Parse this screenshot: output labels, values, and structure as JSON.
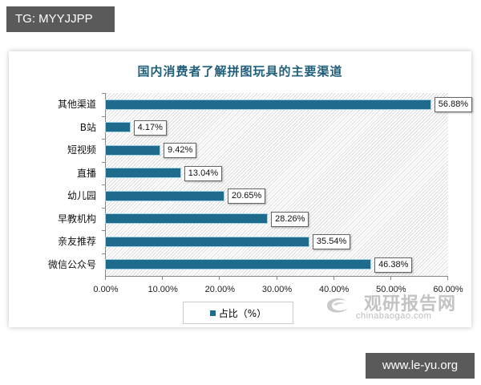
{
  "overlays": {
    "top_tag": "TG: MYYJJPP",
    "bottom_tag": "www.le-yu.org"
  },
  "watermark": {
    "name_cn": "观研报告网",
    "domain": "chinabaogao.com"
  },
  "legend": {
    "label": "占比（%）"
  },
  "x_ticks": [
    "0.00%",
    "10.00%",
    "20.00%",
    "30.00%",
    "40.00%",
    "50.00%",
    "60.00%"
  ],
  "bars": [
    {
      "category": "其他渠道",
      "value": 56.88,
      "label": "56.88%"
    },
    {
      "category": "B站",
      "value": 4.17,
      "label": "4.17%"
    },
    {
      "category": "短视频",
      "value": 9.42,
      "label": "9.42%"
    },
    {
      "category": "直播",
      "value": 13.04,
      "label": "13.04%"
    },
    {
      "category": "幼儿园",
      "value": 20.65,
      "label": "20.65%"
    },
    {
      "category": "早教机构",
      "value": 28.26,
      "label": "28.26%"
    },
    {
      "category": "亲友推荐",
      "value": 35.54,
      "label": "35.54%"
    },
    {
      "category": "微信公众号",
      "value": 46.38,
      "label": "46.38%"
    }
  ],
  "colors": {
    "bar": "#1f6b8e",
    "title": "#1f5e7a"
  },
  "chart_data": {
    "type": "bar",
    "orientation": "horizontal",
    "title": "国内消费者了解拼图玩具的主要渠道",
    "categories": [
      "其他渠道",
      "B站",
      "短视频",
      "直播",
      "幼儿园",
      "早教机构",
      "亲友推荐",
      "微信公众号"
    ],
    "series": [
      {
        "name": "占比（%）",
        "values": [
          56.88,
          4.17,
          9.42,
          13.04,
          20.65,
          28.26,
          35.54,
          46.38
        ]
      }
    ],
    "xlabel": "",
    "ylabel": "",
    "xlim": [
      0,
      60
    ],
    "x_tick_labels": [
      "0.00%",
      "10.00%",
      "20.00%",
      "30.00%",
      "40.00%",
      "50.00%",
      "60.00%"
    ],
    "data_labels": [
      "56.88%",
      "4.17%",
      "9.42%",
      "13.04%",
      "20.65%",
      "28.26%",
      "35.54%",
      "46.38%"
    ],
    "legend": {
      "entries": [
        "占比（%）"
      ],
      "position": "bottom"
    },
    "grid": false
  }
}
